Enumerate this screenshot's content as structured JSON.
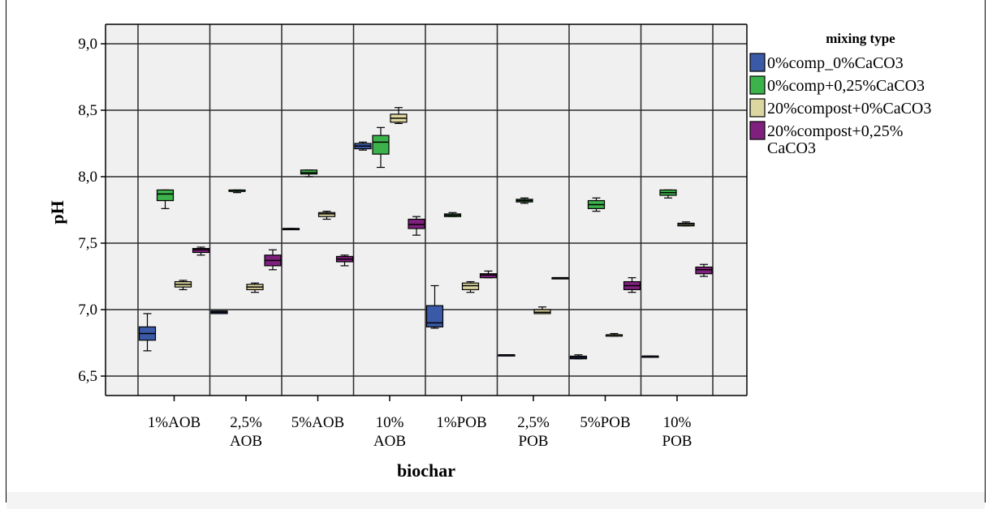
{
  "chart_data": {
    "type": "boxplot",
    "title": "",
    "xlabel": "biochar",
    "ylabel": "pH",
    "ylim": [
      6.35,
      9.2
    ],
    "yticks": [
      "6,5",
      "7,0",
      "7,5",
      "8,0",
      "8,5",
      "9,0"
    ],
    "ytick_values": [
      6.5,
      7.0,
      7.5,
      8.0,
      8.5,
      9.0
    ],
    "grid": true,
    "legend_position": "right",
    "legend_title": "mixing type",
    "categories": [
      {
        "line1": "1%AOB",
        "line2": ""
      },
      {
        "line1": "2,5%",
        "line2": "AOB"
      },
      {
        "line1": "5%AOB",
        "line2": ""
      },
      {
        "line1": "10%",
        "line2": "AOB"
      },
      {
        "line1": "1%POB",
        "line2": ""
      },
      {
        "line1": "2,5%",
        "line2": "POB"
      },
      {
        "line1": "5%POB",
        "line2": ""
      },
      {
        "line1": "10%",
        "line2": "POB"
      }
    ],
    "series": [
      {
        "name": "0%comp_0%CaCO3",
        "name_lines": [
          "0%comp_0%CaCO3"
        ],
        "color": "#3a5aa8",
        "boxes": [
          {
            "min": 6.69,
            "q1": 6.77,
            "median": 6.82,
            "q3": 6.87,
            "max": 6.97
          },
          {
            "min": 6.97,
            "q1": 6.97,
            "median": 6.98,
            "q3": 6.99,
            "max": 6.99
          },
          {
            "min": 7.61,
            "q1": 7.61,
            "median": 7.61,
            "q3": 7.61,
            "max": 7.61
          },
          {
            "min": 8.2,
            "q1": 8.21,
            "median": 8.23,
            "q3": 8.25,
            "max": 8.26
          },
          {
            "min": 6.86,
            "q1": 6.87,
            "median": 6.9,
            "q3": 7.03,
            "max": 7.18
          },
          {
            "min": 6.66,
            "q1": 6.66,
            "median": 6.66,
            "q3": 6.66,
            "max": 6.66
          },
          {
            "min": 6.63,
            "q1": 6.63,
            "median": 6.64,
            "q3": 6.65,
            "max": 6.66
          },
          {
            "min": 6.65,
            "q1": 6.65,
            "median": 6.65,
            "q3": 6.65,
            "max": 6.65
          }
        ]
      },
      {
        "name": "0%comp+0,25%CaCO3",
        "name_lines": [
          "0%comp+0,25%CaCO3"
        ],
        "color": "#3cb34a",
        "boxes": [
          {
            "min": 7.76,
            "q1": 7.82,
            "median": 7.87,
            "q3": 7.9,
            "max": 7.9
          },
          {
            "min": 7.88,
            "q1": 7.89,
            "median": 7.89,
            "q3": 7.9,
            "max": 7.9
          },
          {
            "min": 8.0,
            "q1": 8.02,
            "median": 8.03,
            "q3": 8.05,
            "max": 8.05
          },
          {
            "min": 8.07,
            "q1": 8.17,
            "median": 8.26,
            "q3": 8.31,
            "max": 8.37
          },
          {
            "min": 7.7,
            "q1": 7.7,
            "median": 7.71,
            "q3": 7.72,
            "max": 7.73
          },
          {
            "min": 7.8,
            "q1": 7.81,
            "median": 7.82,
            "q3": 7.83,
            "max": 7.84
          },
          {
            "min": 7.74,
            "q1": 7.76,
            "median": 7.79,
            "q3": 7.82,
            "max": 7.84
          },
          {
            "min": 7.84,
            "q1": 7.86,
            "median": 7.88,
            "q3": 7.9,
            "max": 7.9
          }
        ]
      },
      {
        "name": "20%compost+0%CaCO3",
        "name_lines": [
          "20%compost+0%CaCO3"
        ],
        "color": "#dcd7a0",
        "boxes": [
          {
            "min": 7.15,
            "q1": 7.17,
            "median": 7.19,
            "q3": 7.21,
            "max": 7.22
          },
          {
            "min": 7.13,
            "q1": 7.15,
            "median": 7.17,
            "q3": 7.19,
            "max": 7.2
          },
          {
            "min": 7.68,
            "q1": 7.7,
            "median": 7.72,
            "q3": 7.73,
            "max": 7.74
          },
          {
            "min": 8.4,
            "q1": 8.41,
            "median": 8.44,
            "q3": 8.47,
            "max": 8.52
          },
          {
            "min": 7.13,
            "q1": 7.15,
            "median": 7.18,
            "q3": 7.2,
            "max": 7.21
          },
          {
            "min": 6.97,
            "q1": 6.97,
            "median": 6.98,
            "q3": 7.0,
            "max": 7.02
          },
          {
            "min": 6.8,
            "q1": 6.8,
            "median": 6.81,
            "q3": 6.81,
            "max": 6.82
          },
          {
            "min": 7.63,
            "q1": 7.63,
            "median": 7.64,
            "q3": 7.65,
            "max": 7.66
          }
        ]
      },
      {
        "name": "20%compost+0,25% CaCO3",
        "name_lines": [
          "20%compost+0,25%",
          "CaCO3"
        ],
        "color": "#80207e",
        "boxes": [
          {
            "min": 7.41,
            "q1": 7.43,
            "median": 7.45,
            "q3": 7.46,
            "max": 7.47
          },
          {
            "min": 7.3,
            "q1": 7.33,
            "median": 7.37,
            "q3": 7.41,
            "max": 7.45
          },
          {
            "min": 7.33,
            "q1": 7.36,
            "median": 7.38,
            "q3": 7.4,
            "max": 7.41
          },
          {
            "min": 7.56,
            "q1": 7.61,
            "median": 7.64,
            "q3": 7.68,
            "max": 7.7
          },
          {
            "min": 7.24,
            "q1": 7.24,
            "median": 7.26,
            "q3": 7.27,
            "max": 7.29
          },
          {
            "min": 7.24,
            "q1": 7.24,
            "median": 7.24,
            "q3": 7.24,
            "max": 7.24
          },
          {
            "min": 7.13,
            "q1": 7.15,
            "median": 7.18,
            "q3": 7.21,
            "max": 7.24
          },
          {
            "min": 7.25,
            "q1": 7.27,
            "median": 7.3,
            "q3": 7.32,
            "max": 7.34
          }
        ]
      }
    ]
  }
}
